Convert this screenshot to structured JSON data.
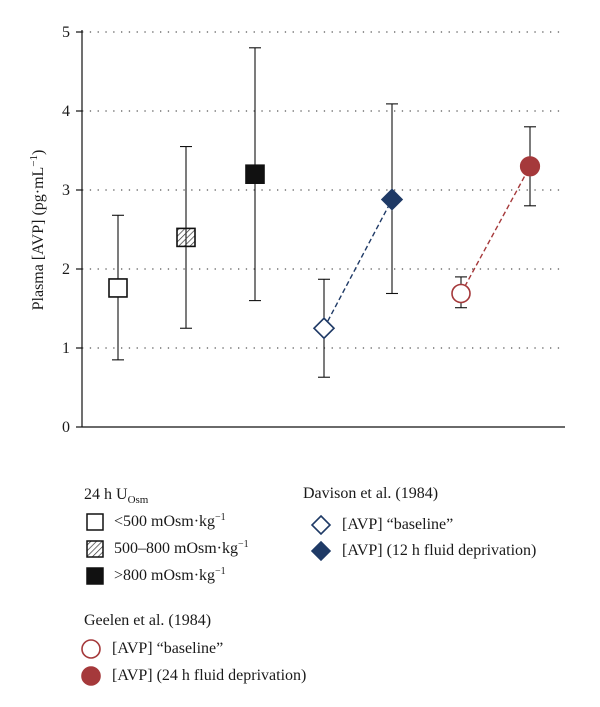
{
  "chart_data": {
    "type": "scatter",
    "ylabel": "Plasma [AVP] (pg·mL",
    "ylabel_sup": "−1",
    "ylabel_close": ")",
    "ylim": [
      0,
      5
    ],
    "yticks": [
      0,
      1,
      2,
      3,
      4,
      5
    ],
    "grid": "horizontal dotted",
    "points": [
      {
        "group": "<500 mOsm·kg−1",
        "x": 1,
        "y": 1.76,
        "err_low": 0.85,
        "err_high": 2.68,
        "marker": "square-open"
      },
      {
        "group": "500–800 mOsm·kg−1",
        "x": 2,
        "y": 2.4,
        "err_low": 1.25,
        "err_high": 3.55,
        "marker": "square-hatched"
      },
      {
        "group": ">800 mOsm·kg−1",
        "x": 3,
        "y": 3.2,
        "err_low": 1.6,
        "err_high": 4.8,
        "marker": "square-filled"
      },
      {
        "group": "Davison baseline",
        "x": 4,
        "y": 1.25,
        "err_low": 0.63,
        "err_high": 1.87,
        "marker": "diamond-open"
      },
      {
        "group": "Davison 12 h fluid deprivation",
        "x": 5,
        "y": 2.88,
        "err_low": 1.69,
        "err_high": 4.09,
        "marker": "diamond-filled"
      },
      {
        "group": "Geelen baseline",
        "x": 6,
        "y": 1.69,
        "err_low": 1.51,
        "err_high": 1.9,
        "marker": "circle-open"
      },
      {
        "group": "Geelen 24 h fluid deprivation",
        "x": 7,
        "y": 3.3,
        "err_low": 2.8,
        "err_high": 3.8,
        "marker": "circle-filled"
      }
    ],
    "connections": [
      {
        "from": 3,
        "to": 4,
        "color": "#1f3a66"
      },
      {
        "from": 5,
        "to": 6,
        "color": "#a5393b"
      }
    ]
  },
  "colors": {
    "navy": "#1f3a66",
    "red": "#a5393b",
    "black": "#111111",
    "grid": "#555555"
  },
  "legend": {
    "uosm": {
      "title_main": "24 h U",
      "title_sub": "Osm",
      "items": [
        {
          "label_main": "<500 mOsm·kg",
          "label_sup": "−1",
          "marker": "square-open"
        },
        {
          "label_main": "500–800 mOsm·kg",
          "label_sup": "−1",
          "marker": "square-hatched"
        },
        {
          "label_main": ">800 mOsm·kg",
          "label_sup": "−1",
          "marker": "square-filled"
        }
      ]
    },
    "davison": {
      "title": "Davison et al. (1984)",
      "items": [
        {
          "label": "[AVP] “baseline”",
          "marker": "diamond-open"
        },
        {
          "label": "[AVP] (12 h fluid deprivation)",
          "marker": "diamond-filled"
        }
      ]
    },
    "geelen": {
      "title": "Geelen et al. (1984)",
      "items": [
        {
          "label": "[AVP] “baseline”",
          "marker": "circle-open"
        },
        {
          "label": "[AVP] (24 h fluid deprivation)",
          "marker": "circle-filled"
        }
      ]
    }
  }
}
